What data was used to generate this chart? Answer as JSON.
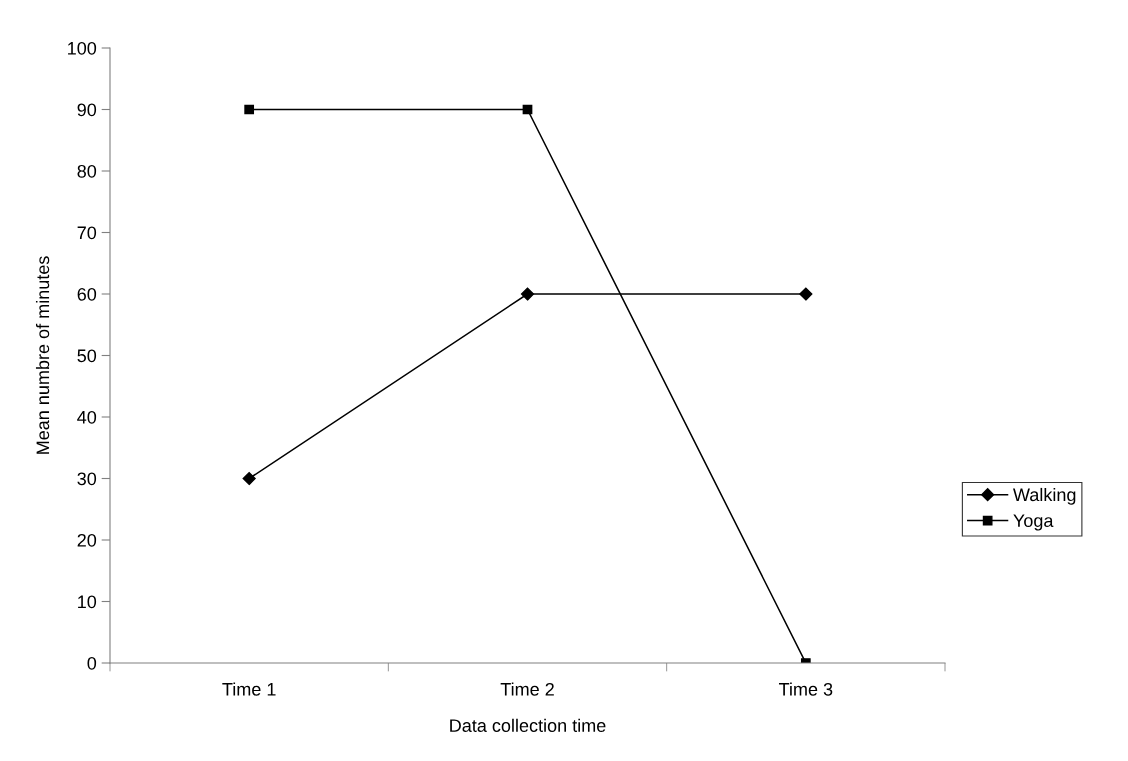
{
  "chart_data": {
    "type": "line",
    "xlabel": "Data collection time",
    "ylabel": "Mean numbre of minutes",
    "categories": [
      "Time 1",
      "Time 2",
      "Time 3"
    ],
    "series": [
      {
        "name": "Walking",
        "color": "#000000",
        "marker": "diamond",
        "values": [
          30,
          60,
          60
        ]
      },
      {
        "name": "Yoga",
        "color": "#000000",
        "marker": "square",
        "values": [
          90,
          90,
          0
        ]
      }
    ],
    "ylim": [
      0,
      100
    ],
    "yticks": [
      0,
      10,
      20,
      30,
      40,
      50,
      60,
      70,
      80,
      90,
      100
    ],
    "grid": false,
    "legend": "right",
    "line_style": "solid"
  }
}
